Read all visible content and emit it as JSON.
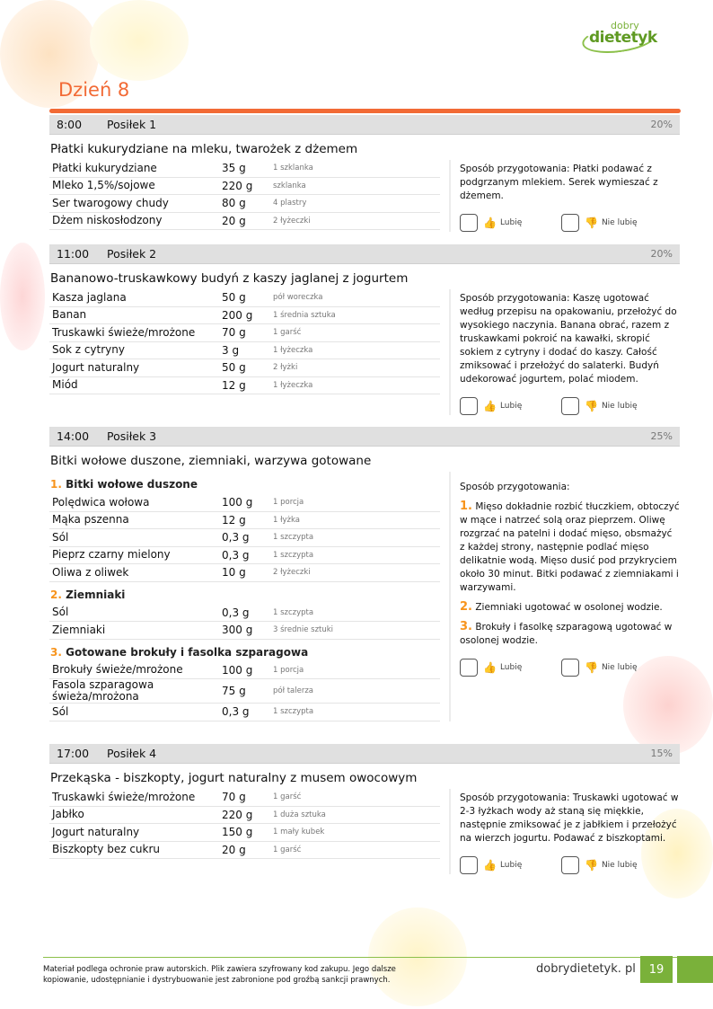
{
  "logo": {
    "top": "dobry",
    "bottom": "dietetyk"
  },
  "day_title": "Dzień 8",
  "labels": {
    "prep": "Sposób przygotowania",
    "like": "Lubię",
    "dislike": "Nie lubię"
  },
  "colors": {
    "accent": "#f26a35",
    "number": "#f7941d",
    "brand": "#7ab13a"
  },
  "meals": [
    {
      "time": "8:00",
      "name": "Posiłek 1",
      "percent": "20%",
      "title": "Płatki kukurydziane na mleku, twarożek z dżemem",
      "ingredients": [
        [
          "Płatki kukurydziane",
          "35 g",
          "1 szklanka"
        ],
        [
          "Mleko 1,5%/sojowe",
          "220 g",
          "szklanka"
        ],
        [
          "Ser twarogowy chudy",
          "80 g",
          "4 plastry"
        ],
        [
          "Dżem niskosłodzony",
          "20 g",
          "2 łyżeczki"
        ]
      ],
      "prep": ": Płatki podawać z podgrzanym mlekiem. Serek wymieszać z dżemem."
    },
    {
      "time": "11:00",
      "name": "Posiłek 2",
      "percent": "20%",
      "title": "Bananowo-truskawkowy budyń z kaszy jaglanej z jogurtem",
      "ingredients": [
        [
          "Kasza jaglana",
          "50 g",
          "pół woreczka"
        ],
        [
          "Banan",
          "200 g",
          "1 średnia sztuka"
        ],
        [
          "Truskawki świeże/mrożone",
          "70 g",
          "1 garść"
        ],
        [
          "Sok z cytryny",
          "3 g",
          "1 łyżeczka"
        ],
        [
          "Jogurt naturalny",
          "50 g",
          "2 łyżki"
        ],
        [
          "Miód",
          "12 g",
          "1 łyżeczka"
        ]
      ],
      "prep": ": Kaszę ugotować według przepisu na opakowaniu, przełożyć do wysokiego naczynia. Banana obrać, razem z truskawkami pokroić na kawałki, skropić sokiem z cytryny i dodać do kaszy. Całość zmiksować i przełożyć do salaterki. Budyń udekorować jogurtem, polać miodem."
    },
    {
      "time": "14:00",
      "name": "Posiłek 3",
      "percent": "25%",
      "title": "Bitki wołowe duszone, ziemniaki, warzywa gotowane",
      "groups": [
        {
          "num": "1.",
          "name": "Bitki wołowe duszone",
          "ingredients": [
            [
              "Polędwica wołowa",
              "100 g",
              "1 porcja"
            ],
            [
              "Mąka pszenna",
              "12 g",
              "1 łyżka"
            ],
            [
              "Sól",
              "0,3 g",
              "1 szczypta"
            ],
            [
              "Pieprz czarny mielony",
              "0,3 g",
              "1 szczypta"
            ],
            [
              "Oliwa z oliwek",
              "10 g",
              "2 łyżeczki"
            ]
          ]
        },
        {
          "num": "2.",
          "name": "Ziemniaki",
          "ingredients": [
            [
              "Sól",
              "0,3 g",
              "1 szczypta"
            ],
            [
              "Ziemniaki",
              "300 g",
              "3 średnie sztuki"
            ]
          ]
        },
        {
          "num": "3.",
          "name": "Gotowane brokuły i fasolka szparagowa",
          "ingredients": [
            [
              "Brokuły świeże/mrożone",
              "100 g",
              "1 porcja"
            ],
            [
              "Fasola szparagowa świeża/mrożona",
              "75 g",
              "pół talerza"
            ],
            [
              "Sól",
              "0,3 g",
              "1 szczypta"
            ]
          ]
        }
      ],
      "prep_colon": ":",
      "prep_steps": [
        {
          "num": "1.",
          "text": "Mięso dokładnie rozbić tłuczkiem, obtoczyć w mące i natrzeć solą oraz pieprzem. Oliwę rozgrzać na patelni i dodać mięso, obsmażyć z każdej strony, następnie podlać mięso delikatnie wodą. Mięso dusić pod przykryciem około 30 minut. Bitki podawać z ziemniakami i warzywami."
        },
        {
          "num": "2.",
          "text": "Ziemniaki ugotować w osolonej wodzie."
        },
        {
          "num": "3.",
          "text": "Brokuły i fasolkę szparagową ugotować w osolonej wodzie."
        }
      ]
    },
    {
      "time": "17:00",
      "name": "Posiłek 4",
      "percent": "15%",
      "title": "Przekąska - biszkopty, jogurt naturalny z musem owocowym",
      "ingredients": [
        [
          "Truskawki świeże/mrożone",
          "70 g",
          "1 garść"
        ],
        [
          "Jabłko",
          "220 g",
          "1 duża sztuka"
        ],
        [
          "Jogurt naturalny",
          "150 g",
          "1 mały kubek"
        ],
        [
          "Biszkopty bez cukru",
          "20 g",
          "1 garść"
        ]
      ],
      "prep": ": Truskawki ugotować w 2-3 łyżkach wody aż staną się miękkie, następnie zmiksować je z jabłkiem i przełożyć na wierzch jogurtu. Podawać z biszkoptami."
    }
  ],
  "footer": {
    "copyright": "Materiał podlega ochronie praw autorskich. Plik zawiera szyfrowany kod zakupu. Jego dalsze kopiowanie, udostępnianie i dystrybuowanie jest zabronione pod groźbą sankcji prawnych.",
    "site": "dobrydietetyk. pl",
    "page": "19"
  }
}
